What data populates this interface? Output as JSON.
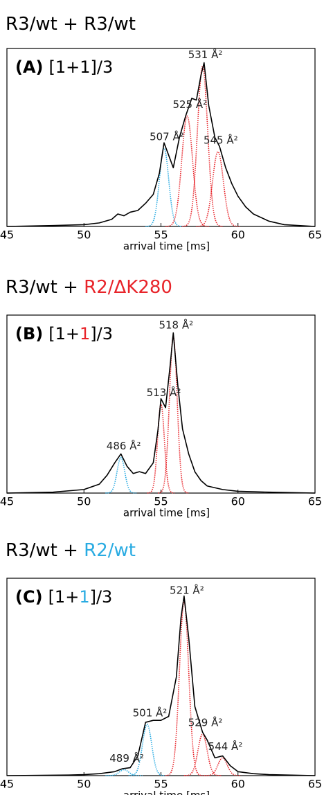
{
  "chart_data": [
    {
      "type": "line",
      "title_parts": [
        {
          "text": "R3/wt + R3/wt",
          "color": "#000000"
        }
      ],
      "panel_label": "(A)",
      "label_parts": [
        {
          "text": "[1+",
          "color": "#000000"
        },
        {
          "text": "1",
          "color": "#000000"
        },
        {
          "text": "]/3",
          "color": "#000000"
        }
      ],
      "xlabel": "arrival time [ms]",
      "xlim": [
        45,
        65
      ],
      "xticks": [
        45,
        50,
        55,
        60,
        65
      ],
      "ylim": [
        0,
        1
      ],
      "x": [
        45,
        48,
        50,
        51,
        51.8,
        52.2,
        52.6,
        53,
        53.5,
        54,
        54.5,
        54.9,
        55.2,
        55.5,
        55.8,
        56.2,
        56.6,
        57,
        57.3,
        57.6,
        57.8,
        58.1,
        58.5,
        58.8,
        59.2,
        59.6,
        60,
        60.5,
        61,
        62,
        63,
        65
      ],
      "series": [
        {
          "color": "#000000",
          "values": [
            0.0,
            0.005,
            0.01,
            0.02,
            0.04,
            0.07,
            0.06,
            0.08,
            0.09,
            0.13,
            0.18,
            0.3,
            0.47,
            0.4,
            0.33,
            0.5,
            0.62,
            0.72,
            0.71,
            0.85,
            0.92,
            0.68,
            0.5,
            0.45,
            0.33,
            0.24,
            0.17,
            0.11,
            0.07,
            0.03,
            0.01,
            0.0
          ]
        }
      ],
      "fits": [
        {
          "center": 55.2,
          "height": 0.44,
          "width": 0.3,
          "color": "#29abe2",
          "label": "507 Å²"
        },
        {
          "center": 56.7,
          "height": 0.62,
          "width": 0.35,
          "color": "#e8242a",
          "label": "525 Å²"
        },
        {
          "center": 57.7,
          "height": 0.9,
          "width": 0.33,
          "color": "#e8242a",
          "label": "531 Å²"
        },
        {
          "center": 58.7,
          "height": 0.42,
          "width": 0.35,
          "color": "#e8242a",
          "label": "545 Å²"
        }
      ]
    },
    {
      "type": "line",
      "title_parts": [
        {
          "text": "R3/wt + ",
          "color": "#000000"
        },
        {
          "text": "R2/ΔK280",
          "color": "#e8242a"
        }
      ],
      "panel_label": "(B)",
      "label_parts": [
        {
          "text": "[1+",
          "color": "#000000"
        },
        {
          "text": "1",
          "color": "#e8242a"
        },
        {
          "text": "]/3",
          "color": "#000000"
        }
      ],
      "xlabel": "arrival time [ms]",
      "xlim": [
        45,
        65
      ],
      "xticks": [
        45,
        50,
        55,
        60,
        65
      ],
      "ylim": [
        0,
        1
      ],
      "x": [
        45,
        48,
        50,
        51,
        51.5,
        52,
        52.4,
        52.8,
        53.2,
        53.6,
        54,
        54.5,
        54.8,
        55,
        55.3,
        55.6,
        55.8,
        56.1,
        56.4,
        56.8,
        57.2,
        57.6,
        58,
        59,
        60,
        62,
        65
      ],
      "series": [
        {
          "color": "#000000",
          "values": [
            0.0,
            0.005,
            0.02,
            0.05,
            0.1,
            0.17,
            0.22,
            0.15,
            0.11,
            0.12,
            0.11,
            0.17,
            0.35,
            0.53,
            0.48,
            0.72,
            0.9,
            0.6,
            0.36,
            0.22,
            0.12,
            0.07,
            0.04,
            0.02,
            0.01,
            0.005,
            0.0
          ]
        }
      ],
      "fits": [
        {
          "center": 52.4,
          "height": 0.2,
          "width": 0.25,
          "color": "#29abe2",
          "label": "486 Å²"
        },
        {
          "center": 55.0,
          "height": 0.5,
          "width": 0.22,
          "color": "#e8242a",
          "label": "513 Å²"
        },
        {
          "center": 55.8,
          "height": 0.88,
          "width": 0.25,
          "color": "#e8242a",
          "label": "518 Å²"
        }
      ]
    },
    {
      "type": "line",
      "title_parts": [
        {
          "text": "R3/wt + ",
          "color": "#000000"
        },
        {
          "text": "R2/wt",
          "color": "#29abe2"
        }
      ],
      "panel_label": "(C)",
      "label_parts": [
        {
          "text": "[1+",
          "color": "#000000"
        },
        {
          "text": "1",
          "color": "#29abe2"
        },
        {
          "text": "]/3",
          "color": "#000000"
        }
      ],
      "xlabel": "arrival time [ms]",
      "xlim": [
        45,
        65
      ],
      "xticks": [
        45,
        50,
        55,
        60,
        65
      ],
      "ylim": [
        0,
        1
      ],
      "x": [
        45,
        49,
        50,
        51,
        52,
        52.5,
        53,
        53.5,
        54,
        54.5,
        55,
        55.5,
        56,
        56.3,
        56.5,
        56.8,
        57.2,
        57.7,
        58,
        58.5,
        59,
        59.5,
        60,
        61,
        62,
        65
      ],
      "series": [
        {
          "color": "#000000",
          "values": [
            0.0,
            0.003,
            0.005,
            0.01,
            0.02,
            0.035,
            0.04,
            0.1,
            0.27,
            0.28,
            0.28,
            0.3,
            0.5,
            0.8,
            0.91,
            0.7,
            0.35,
            0.22,
            0.18,
            0.09,
            0.1,
            0.05,
            0.02,
            0.01,
            0.005,
            0.0
          ]
        }
      ],
      "fits": [
        {
          "center": 52.6,
          "height": 0.03,
          "width": 0.3,
          "color": "#29abe2",
          "label": "489 Å²"
        },
        {
          "center": 54.1,
          "height": 0.26,
          "width": 0.3,
          "color": "#29abe2",
          "label": "501 Å²"
        },
        {
          "center": 56.5,
          "height": 0.88,
          "width": 0.3,
          "color": "#e8242a",
          "label": "521 Å²"
        },
        {
          "center": 57.7,
          "height": 0.21,
          "width": 0.3,
          "color": "#e8242a",
          "label": "529 Å²"
        },
        {
          "center": 59.0,
          "height": 0.09,
          "width": 0.3,
          "color": "#e8242a",
          "label": "544 Å²"
        }
      ]
    }
  ]
}
